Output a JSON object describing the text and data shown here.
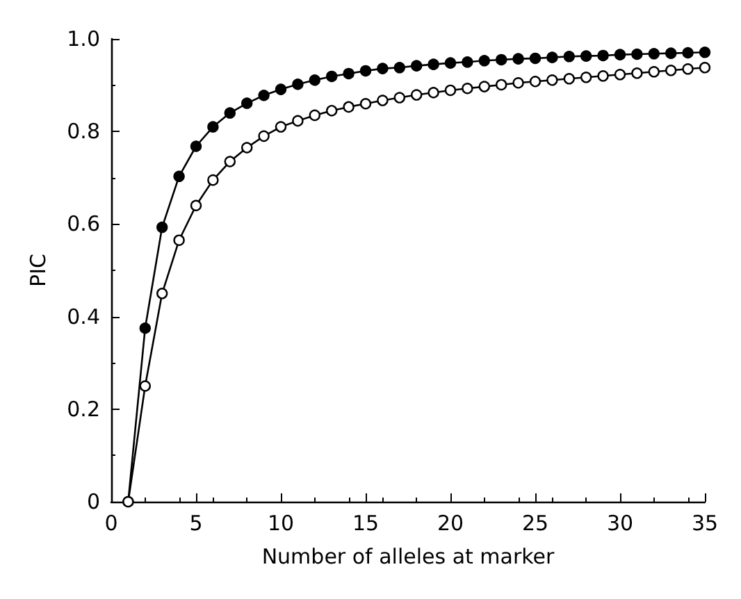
{
  "chart_data": {
    "type": "line",
    "xlabel": "Number of alleles at marker",
    "ylabel": "PIC",
    "xlim": [
      0,
      35
    ],
    "xticks": [
      0,
      5,
      10,
      15,
      20,
      25,
      30,
      35
    ],
    "ylim": [
      0,
      1.0
    ],
    "yticks": [
      0,
      {
        "value": 0.2,
        "label": "0.2"
      },
      {
        "value": 0.4,
        "label": "0.4"
      },
      {
        "value": 0.6,
        "label": "0.6"
      },
      {
        "value": 0.8,
        "label": "0.8"
      },
      {
        "value": 1.0,
        "label": "1.0"
      }
    ],
    "x": [
      1,
      2,
      3,
      4,
      5,
      6,
      7,
      8,
      9,
      10,
      11,
      12,
      13,
      14,
      15,
      16,
      17,
      18,
      19,
      20,
      21,
      22,
      23,
      24,
      25,
      26,
      27,
      28,
      29,
      30,
      31,
      32,
      33,
      34,
      35
    ],
    "grid": false,
    "marker": "circle",
    "line_style": "solid",
    "series": [
      {
        "color": "#000000",
        "values": [
          0,
          0.375,
          0.593,
          0.703,
          0.768,
          0.81,
          0.84,
          0.861,
          0.878,
          0.891,
          0.902,
          0.911,
          0.919,
          0.925,
          0.931,
          0.936,
          0.938,
          0.942,
          0.945,
          0.948,
          0.95,
          0.953,
          0.955,
          0.957,
          0.958,
          0.96,
          0.962,
          0.963,
          0.964,
          0.966,
          0.967,
          0.968,
          0.969,
          0.97,
          0.971
        ]
      },
      {
        "color": "#000000",
        "values": [
          0,
          0.25,
          0.45,
          0.565,
          0.64,
          0.695,
          0.735,
          0.765,
          0.79,
          0.81,
          0.823,
          0.835,
          0.845,
          0.853,
          0.86,
          0.867,
          0.873,
          0.879,
          0.884,
          0.889,
          0.893,
          0.897,
          0.901,
          0.905,
          0.908,
          0.911,
          0.914,
          0.917,
          0.92,
          0.923,
          0.926,
          0.929,
          0.932,
          0.935,
          0.938
        ]
      }
    ]
  }
}
